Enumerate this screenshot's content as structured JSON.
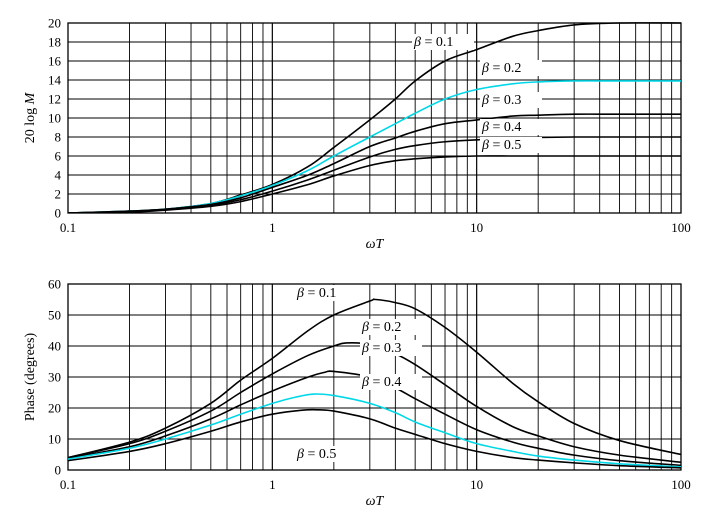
{
  "chart_data": [
    {
      "type": "line",
      "title": "",
      "xlabel": "ωT",
      "ylabel": "20 log M",
      "xscale": "log",
      "xlim": [
        0.1,
        100
      ],
      "ylim": [
        0,
        20
      ],
      "grid": true,
      "x_tick_labels": [
        "0.1",
        "1",
        "10",
        "100"
      ],
      "y_tick_labels": [
        "0",
        "2",
        "4",
        "6",
        "8",
        "10",
        "12",
        "14",
        "16",
        "18",
        "20"
      ],
      "series": [
        {
          "name": "β = 0.1",
          "color": "#000000",
          "x": [
            0.1,
            0.2,
            0.3,
            0.5,
            0.7,
            1,
            1.5,
            2,
            3,
            4,
            5,
            7,
            10,
            15,
            20,
            30,
            50,
            100
          ],
          "y": [
            0.0,
            0.2,
            0.4,
            1.0,
            1.9,
            3.0,
            4.9,
            6.9,
            9.8,
            12.0,
            13.9,
            16.0,
            17.2,
            18.6,
            19.2,
            19.8,
            20.0,
            20.0
          ]
        },
        {
          "name": "β = 0.2",
          "color": "#00d8e8",
          "x": [
            0.1,
            0.2,
            0.3,
            0.5,
            0.7,
            1,
            1.5,
            2,
            3,
            4,
            5,
            7,
            10,
            15,
            20,
            30,
            50,
            100
          ],
          "y": [
            0.0,
            0.2,
            0.4,
            1.0,
            1.8,
            2.9,
            4.5,
            6.0,
            8.0,
            9.4,
            10.5,
            12.0,
            13.0,
            13.6,
            13.8,
            13.9,
            13.9,
            13.9
          ]
        },
        {
          "name": "β = 0.3",
          "color": "#000000",
          "x": [
            0.1,
            0.2,
            0.3,
            0.5,
            0.7,
            1,
            1.5,
            2,
            3,
            4,
            5,
            7,
            10,
            15,
            20,
            30,
            50,
            100
          ],
          "y": [
            0.0,
            0.2,
            0.4,
            0.9,
            1.6,
            2.7,
            4.0,
            5.2,
            7.0,
            7.9,
            8.6,
            9.4,
            9.8,
            10.2,
            10.3,
            10.4,
            10.4,
            10.4
          ]
        },
        {
          "name": "β = 0.4",
          "color": "#000000",
          "x": [
            0.1,
            0.2,
            0.3,
            0.5,
            0.7,
            1,
            1.5,
            2,
            3,
            4,
            5,
            7,
            10,
            15,
            20,
            30,
            50,
            100
          ],
          "y": [
            0.0,
            0.15,
            0.35,
            0.8,
            1.4,
            2.3,
            3.5,
            4.5,
            5.9,
            6.7,
            7.1,
            7.5,
            7.7,
            7.9,
            7.95,
            8.0,
            8.0,
            8.0
          ]
        },
        {
          "name": "β = 0.5",
          "color": "#000000",
          "x": [
            0.1,
            0.2,
            0.3,
            0.5,
            0.7,
            1,
            1.5,
            2,
            3,
            4,
            5,
            7,
            10,
            15,
            20,
            30,
            50,
            100
          ],
          "y": [
            0.0,
            0.1,
            0.3,
            0.7,
            1.2,
            2.0,
            3.0,
            3.9,
            5.0,
            5.5,
            5.7,
            5.9,
            6.0,
            6.0,
            6.0,
            6.0,
            6.0,
            6.0
          ]
        }
      ],
      "annotations": [
        {
          "text_beta": "β",
          "text_value": " = 0.1",
          "series": "β = 0.1"
        },
        {
          "text_beta": "β",
          "text_value": " = 0.2",
          "series": "β = 0.2"
        },
        {
          "text_beta": "β",
          "text_value": " = 0.3",
          "series": "β = 0.3"
        },
        {
          "text_beta": "β",
          "text_value": " = 0.4",
          "series": "β = 0.4"
        },
        {
          "text_beta": "β",
          "text_value": " = 0.5",
          "series": "β = 0.5"
        }
      ]
    },
    {
      "type": "line",
      "title": "",
      "xlabel": "ωT",
      "ylabel": "Phase (degrees)",
      "xscale": "log",
      "xlim": [
        0.1,
        100
      ],
      "ylim": [
        0,
        60
      ],
      "grid": true,
      "x_tick_labels": [
        "0.1",
        "1",
        "10",
        "100"
      ],
      "y_tick_labels": [
        "0",
        "10",
        "20",
        "30",
        "40",
        "50",
        "60"
      ],
      "series": [
        {
          "name": "β = 0.1",
          "color": "#000000",
          "x": [
            0.1,
            0.2,
            0.3,
            0.5,
            0.7,
            1,
            1.5,
            2,
            3,
            3.2,
            4,
            5,
            7,
            10,
            15,
            20,
            30,
            50,
            100
          ],
          "y": [
            4.0,
            9.0,
            13.5,
            21.5,
            29.0,
            36.0,
            45.0,
            50.0,
            54.5,
            55.0,
            54.0,
            52.0,
            46.0,
            38.0,
            28.0,
            22.0,
            15.0,
            9.5,
            5.0
          ]
        },
        {
          "name": "β = 0.2",
          "color": "#000000",
          "x": [
            0.1,
            0.2,
            0.3,
            0.5,
            0.7,
            1,
            1.5,
            2,
            2.3,
            3,
            4,
            5,
            7,
            10,
            15,
            20,
            30,
            50,
            100
          ],
          "y": [
            4.0,
            8.5,
            12.5,
            19.0,
            25.0,
            31.0,
            37.0,
            40.0,
            41.0,
            40.5,
            37.5,
            34.0,
            27.5,
            20.5,
            14.0,
            11.0,
            7.5,
            4.8,
            2.5
          ]
        },
        {
          "name": "β = 0.3",
          "color": "#000000",
          "x": [
            0.1,
            0.2,
            0.3,
            0.5,
            0.7,
            1,
            1.5,
            1.8,
            2,
            3,
            4,
            5,
            7,
            10,
            15,
            20,
            30,
            50,
            100
          ],
          "y": [
            3.8,
            7.5,
            11.0,
            16.5,
            21.0,
            25.5,
            30.0,
            31.5,
            31.8,
            30.0,
            26.5,
            23.0,
            18.0,
            13.0,
            9.0,
            7.0,
            4.8,
            3.0,
            1.5
          ]
        },
        {
          "name": "β = 0.4",
          "color": "#00d8e8",
          "x": [
            0.1,
            0.2,
            0.3,
            0.5,
            0.7,
            1,
            1.3,
            1.6,
            2,
            3,
            4,
            5,
            7,
            10,
            15,
            20,
            30,
            50,
            100
          ],
          "y": [
            3.5,
            7.0,
            10.0,
            14.5,
            18.0,
            21.5,
            23.5,
            24.5,
            24.0,
            21.5,
            18.5,
            15.5,
            12.0,
            8.5,
            6.0,
            4.5,
            3.2,
            2.0,
            1.0
          ]
        },
        {
          "name": "β = 0.5",
          "color": "#000000",
          "x": [
            0.1,
            0.2,
            0.3,
            0.5,
            0.7,
            1,
            1.4,
            1.7,
            2,
            3,
            4,
            5,
            7,
            10,
            15,
            20,
            30,
            50,
            100
          ],
          "y": [
            3.0,
            6.0,
            8.5,
            12.5,
            15.5,
            18.0,
            19.3,
            19.4,
            19.0,
            16.5,
            13.5,
            11.5,
            8.5,
            6.0,
            4.0,
            3.2,
            2.3,
            1.4,
            0.7
          ]
        }
      ],
      "annotations": [
        {
          "text_beta": "β",
          "text_value": " = 0.1",
          "series": "β = 0.1"
        },
        {
          "text_beta": "β",
          "text_value": " = 0.2",
          "series": "β = 0.2"
        },
        {
          "text_beta": "β",
          "text_value": " = 0.3",
          "series": "β = 0.3"
        },
        {
          "text_beta": "β",
          "text_value": " = 0.4",
          "series": "β = 0.4"
        },
        {
          "text_beta": "β",
          "text_value": " = 0.5",
          "series": "β = 0.5"
        }
      ]
    }
  ]
}
